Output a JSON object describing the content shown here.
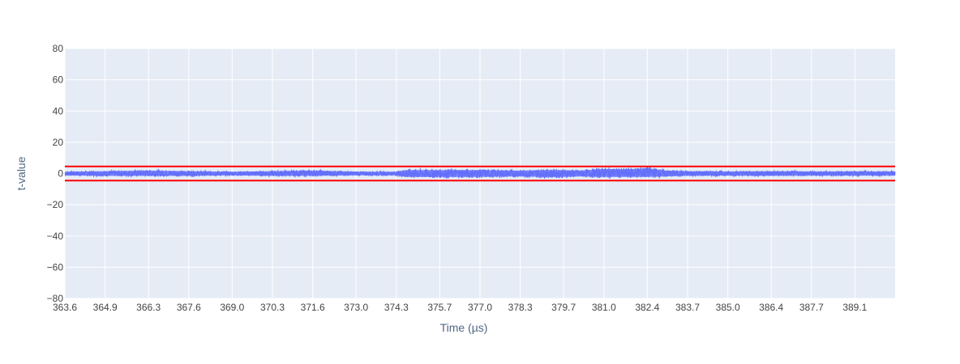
{
  "chart_data": {
    "type": "line",
    "title": "",
    "xlabel": "Time (µs)",
    "ylabel": "t-value",
    "xlim": [
      363.6,
      390.4
    ],
    "ylim": [
      -80,
      80
    ],
    "grid": true,
    "legend": "none",
    "colors": {
      "plot_bg": "#E5ECF6",
      "grid": "#FFFFFF",
      "series": "#636EFA",
      "threshold": "#FF0000"
    },
    "x_ticks": [
      "363.6",
      "364.9",
      "366.3",
      "367.6",
      "369.0",
      "370.3",
      "371.6",
      "373.0",
      "374.3",
      "375.7",
      "377.0",
      "378.3",
      "379.7",
      "381.0",
      "382.4",
      "383.7",
      "385.0",
      "386.4",
      "387.7",
      "389.1"
    ],
    "y_ticks": [
      "80",
      "60",
      "40",
      "20",
      "0",
      "−20",
      "−40",
      "−60",
      "−80"
    ],
    "y_tick_values": [
      80,
      60,
      40,
      20,
      0,
      -20,
      -40,
      -60,
      -80
    ],
    "thresholds": [
      4.5,
      -4.5
    ],
    "series": [
      {
        "x": [
          363.6,
          365.0,
          366.3,
          367.6,
          369.0,
          370.3,
          371.6,
          373.0,
          374.3,
          374.6,
          375.7,
          377.0,
          378.3,
          379.0,
          379.7,
          380.3,
          381.0,
          381.6,
          382.4,
          383.0,
          383.7,
          385.0,
          386.4,
          387.7,
          389.1,
          390.4
        ],
        "y_max": [
          1.5,
          2.0,
          2.5,
          2.0,
          1.5,
          2.0,
          2.5,
          1.5,
          1.5,
          3.0,
          3.0,
          3.0,
          2.5,
          3.0,
          3.0,
          2.5,
          4.0,
          3.5,
          4.5,
          2.5,
          2.0,
          1.8,
          2.0,
          1.8,
          1.8,
          1.8
        ],
        "y_min": [
          -1.5,
          -2.0,
          -2.0,
          -2.0,
          -1.5,
          -2.0,
          -2.0,
          -1.5,
          -1.5,
          -3.0,
          -3.0,
          -3.0,
          -2.5,
          -3.0,
          -3.0,
          -2.5,
          -3.0,
          -3.0,
          -3.0,
          -2.5,
          -2.0,
          -1.8,
          -2.0,
          -1.8,
          -1.8,
          -1.8
        ]
      }
    ]
  }
}
